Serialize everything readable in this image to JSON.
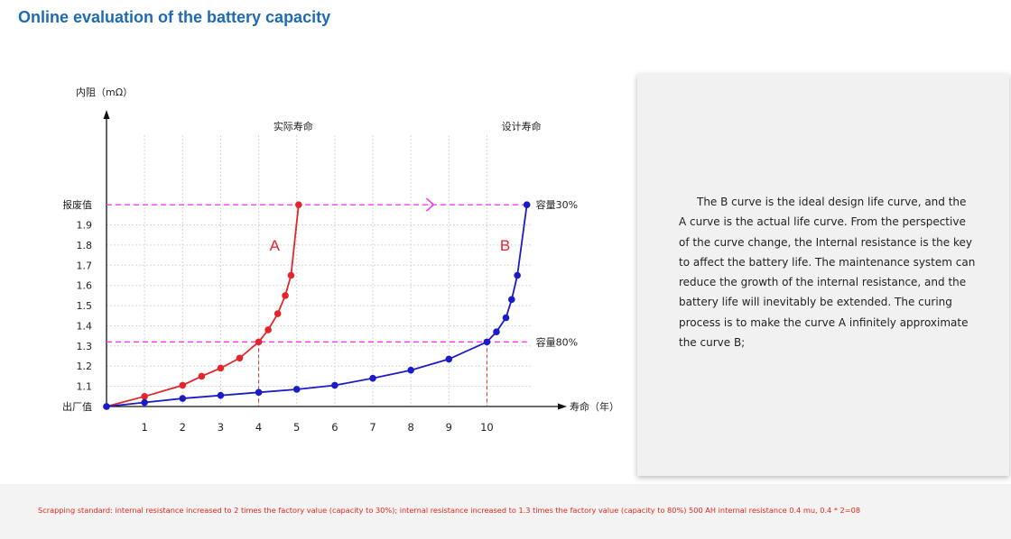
{
  "page": {
    "title": "Online evaluation of the battery capacity"
  },
  "side_panel": {
    "text": "The B curve is the ideal design life curve, and the A curve is the actual life curve. From the perspective of the curve change, the Internal resistance is the key to affect the battery life. The maintenance system can reduce the growth of the internal resistance, and the battery life will inevitably be extended. The curing process is to make the curve A infinitely approximate the curve B;"
  },
  "footer": {
    "note": "Scrapping standard: internal resistance increased to 2 times the factory value (capacity to 30%); internal resistance increased to 1.3 times the factory value (capacity to 80%) 500 AH internal resistance 0.4 mu, 0.4 * 2=08"
  },
  "chart_data": {
    "type": "line",
    "ylabel": "内阻（mΩ）",
    "xlabel": "寿命（年）",
    "xlim": [
      0,
      11.2
    ],
    "ylim": [
      1.0,
      2.3
    ],
    "x_ticks": [
      {
        "value": 1,
        "label": "1"
      },
      {
        "value": 2,
        "label": "2"
      },
      {
        "value": 3,
        "label": "3"
      },
      {
        "value": 4,
        "label": "4"
      },
      {
        "value": 5,
        "label": "5"
      },
      {
        "value": 6,
        "label": "6"
      },
      {
        "value": 7,
        "label": "7"
      },
      {
        "value": 8,
        "label": "8"
      },
      {
        "value": 9,
        "label": "9"
      },
      {
        "value": 10,
        "label": "10"
      }
    ],
    "y_ticks": [
      {
        "value": 1.0,
        "label": "出厂值"
      },
      {
        "value": 1.1,
        "label": "1.1"
      },
      {
        "value": 1.2,
        "label": "1.2"
      },
      {
        "value": 1.3,
        "label": "1.3"
      },
      {
        "value": 1.4,
        "label": "1.4"
      },
      {
        "value": 1.5,
        "label": "1.5"
      },
      {
        "value": 1.6,
        "label": "1.6"
      },
      {
        "value": 1.7,
        "label": "1.7"
      },
      {
        "value": 1.8,
        "label": "1.8"
      },
      {
        "value": 1.9,
        "label": "1.9"
      },
      {
        "value": 2.0,
        "label": "报废值"
      }
    ],
    "grid": true,
    "series": [
      {
        "name": "A",
        "color": "#e3262b",
        "points": [
          [
            0,
            1.0
          ],
          [
            1,
            1.05
          ],
          [
            2,
            1.105
          ],
          [
            2.5,
            1.15
          ],
          [
            3,
            1.19
          ],
          [
            3.5,
            1.24
          ],
          [
            4,
            1.32
          ],
          [
            4.25,
            1.38
          ],
          [
            4.5,
            1.46
          ],
          [
            4.7,
            1.55
          ],
          [
            4.85,
            1.65
          ],
          [
            5.05,
            2.0
          ]
        ]
      },
      {
        "name": "B",
        "color": "#1c1cc6",
        "points": [
          [
            0,
            1.0
          ],
          [
            1,
            1.02
          ],
          [
            2,
            1.04
          ],
          [
            3,
            1.055
          ],
          [
            4,
            1.07
          ],
          [
            5,
            1.085
          ],
          [
            6,
            1.105
          ],
          [
            7,
            1.14
          ],
          [
            8,
            1.18
          ],
          [
            9,
            1.235
          ],
          [
            10,
            1.32
          ],
          [
            10.25,
            1.37
          ],
          [
            10.5,
            1.44
          ],
          [
            10.65,
            1.53
          ],
          [
            10.8,
            1.65
          ],
          [
            11.05,
            2.0
          ]
        ]
      }
    ],
    "reference_lines": [
      {
        "y": 2.0,
        "label": "容量30%",
        "color": "#ee44ee"
      },
      {
        "y": 1.32,
        "label": "容量80%",
        "color": "#ee44ee"
      }
    ],
    "vertical_markers": [
      {
        "x": 4,
        "color": "#d23b2e"
      },
      {
        "x": 10,
        "color": "#d23b2e"
      }
    ],
    "annotations": [
      {
        "text": "实际寿命",
        "x": 5.05
      },
      {
        "text": "设计寿命",
        "x": 11.05
      }
    ],
    "arrow": {
      "color": "#ee44ee",
      "x": 8.6,
      "y": 2.0
    }
  }
}
